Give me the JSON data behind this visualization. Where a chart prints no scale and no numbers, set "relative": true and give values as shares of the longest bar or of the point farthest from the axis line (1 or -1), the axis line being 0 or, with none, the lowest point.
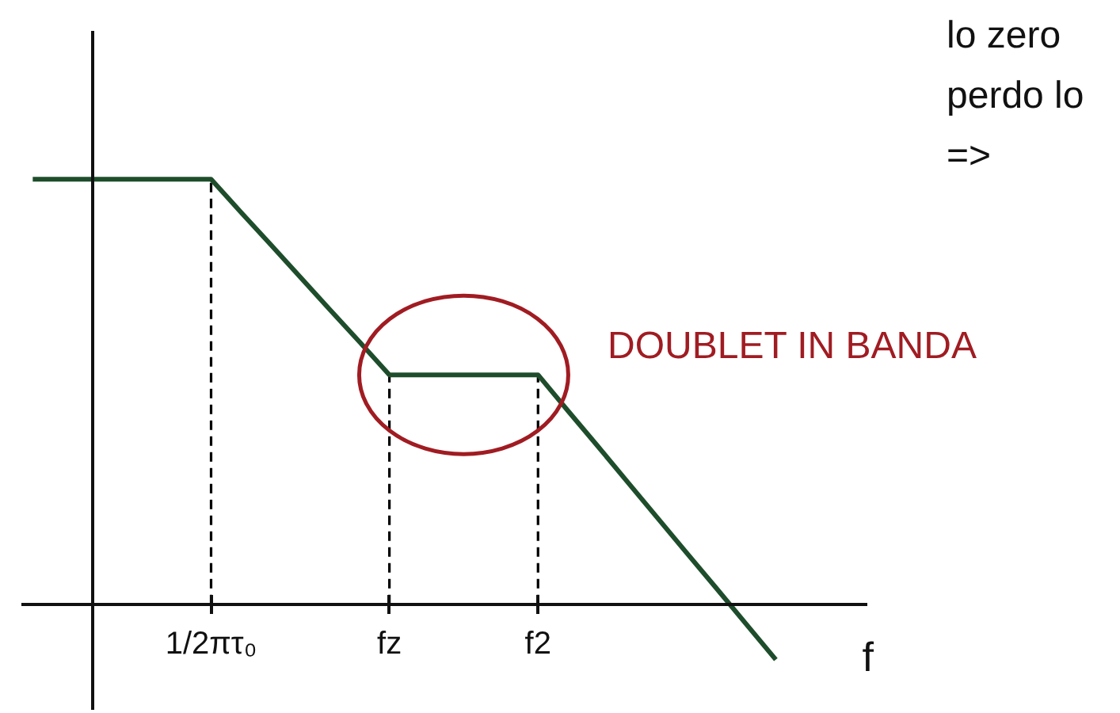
{
  "chart_data": {
    "type": "line",
    "relative": true,
    "categories": [
      null,
      null,
      null,
      null,
      null,
      null,
      "1/2πτ₀",
      null,
      null,
      null,
      null,
      null,
      "fz",
      null,
      null,
      null,
      null,
      "f2",
      null,
      null,
      null,
      null,
      null,
      null,
      null,
      null
    ],
    "series": [
      {
        "color": "#1e4d2b",
        "values": [
          1,
          1,
          1,
          1,
          1,
          1,
          1,
          0.923,
          0.847,
          0.77,
          0.693,
          0.617,
          0.54,
          0.54,
          0.54,
          0.54,
          0.54,
          0.54,
          0.456,
          0.373,
          0.289,
          0.205,
          0.121,
          0.038,
          -0.046,
          -0.13
        ]
      }
    ],
    "xlabel": "f",
    "ref_lines": [
      {
        "axis": "x",
        "value": "1/2πτ₀",
        "line_style": "dashed",
        "color": "#000000"
      },
      {
        "axis": "x",
        "value": "fz",
        "line_style": "dashed",
        "color": "#000000"
      },
      {
        "axis": "x",
        "value": "f2",
        "line_style": "dashed",
        "color": "#000000"
      }
    ],
    "annotations": [
      "lo zero",
      "perdo lo",
      "=>",
      "DOUBLET IN BANDA"
    ]
  }
}
